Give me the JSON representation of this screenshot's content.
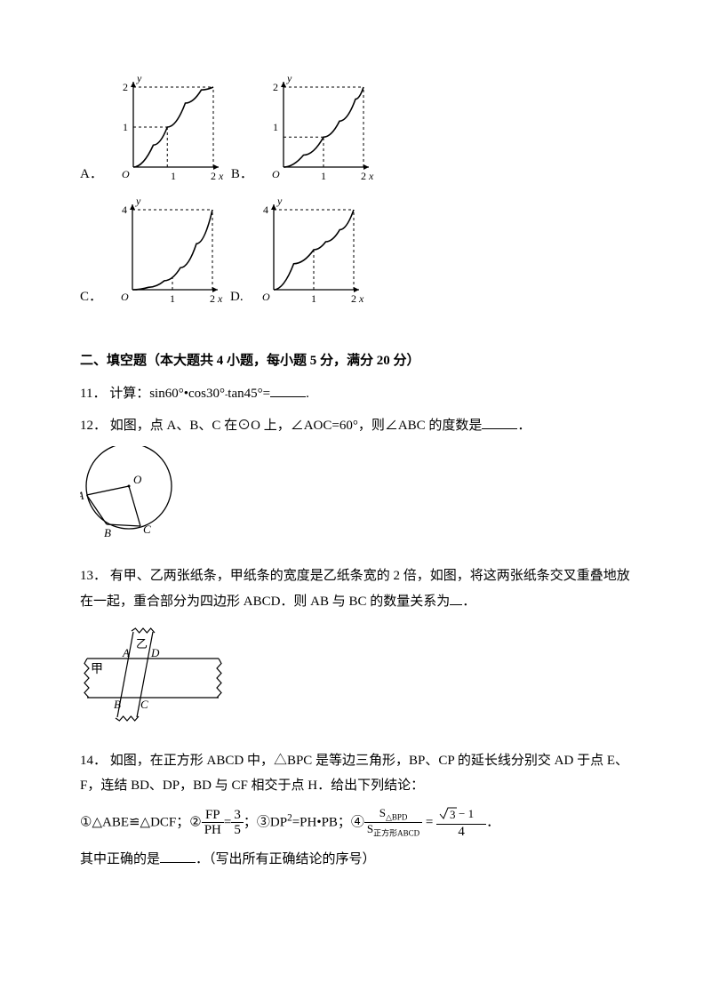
{
  "q10": {
    "opts": {
      "A": "A．",
      "B": "B．",
      "C": "C．",
      "D": "D."
    },
    "charts": {
      "A": {
        "type": "curve",
        "ymax": 2,
        "xmax": 2,
        "yticks": [
          1,
          2
        ],
        "xticks": [
          1,
          2
        ],
        "ylabel": "y",
        "xlabel": "x",
        "origin": "O",
        "pts": [
          [
            0,
            0
          ],
          [
            0.5,
            0.55
          ],
          [
            0.85,
            1.0
          ],
          [
            1.3,
            1.6
          ],
          [
            1.7,
            1.93
          ],
          [
            2,
            2
          ]
        ],
        "dashes": [
          [
            [
              0,
              2
            ],
            [
              2,
              2
            ]
          ],
          [
            [
              2,
              0
            ],
            [
              2,
              2
            ]
          ],
          [
            [
              0,
              1
            ],
            [
              0.85,
              1
            ]
          ],
          [
            [
              0.85,
              0
            ],
            [
              0.85,
              1
            ]
          ]
        ],
        "color": "#000"
      },
      "B": {
        "type": "curve",
        "ymax": 2,
        "xmax": 2,
        "yticks": [
          1,
          2
        ],
        "xticks": [
          1,
          2
        ],
        "ylabel": "y",
        "xlabel": "x",
        "origin": "O",
        "pts": [
          [
            0,
            0
          ],
          [
            0.5,
            0.3
          ],
          [
            1.0,
            0.75
          ],
          [
            1.4,
            1.15
          ],
          [
            1.8,
            1.7
          ],
          [
            2,
            2
          ]
        ],
        "dashes": [
          [
            [
              0,
              2
            ],
            [
              2,
              2
            ]
          ],
          [
            [
              2,
              0
            ],
            [
              2,
              2
            ]
          ],
          [
            [
              0,
              0.75
            ],
            [
              1,
              0.75
            ]
          ],
          [
            [
              1,
              0
            ],
            [
              1,
              0.75
            ]
          ]
        ],
        "color": "#000"
      },
      "C": {
        "type": "curve",
        "ymax": 4,
        "xmax": 2,
        "yticks": [
          4
        ],
        "xticks": [
          1,
          2
        ],
        "ylabel": "y",
        "xlabel": "x",
        "origin": "O",
        "pts": [
          [
            0,
            0
          ],
          [
            0.4,
            0.12
          ],
          [
            0.8,
            0.45
          ],
          [
            1.2,
            1.1
          ],
          [
            1.6,
            2.3
          ],
          [
            2,
            4
          ]
        ],
        "dashes": [
          [
            [
              0,
              4
            ],
            [
              2,
              4
            ]
          ],
          [
            [
              2,
              0
            ],
            [
              2,
              4
            ]
          ],
          [
            [
              1,
              0
            ],
            [
              1,
              0.65
            ]
          ]
        ],
        "color": "#000"
      },
      "D": {
        "type": "curve",
        "ymax": 4,
        "xmax": 2,
        "yticks": [
          4
        ],
        "xticks": [
          1,
          2
        ],
        "ylabel": "y",
        "xlabel": "x",
        "origin": "O",
        "pts": [
          [
            0,
            0
          ],
          [
            0.5,
            1.3
          ],
          [
            1.0,
            2.0
          ],
          [
            1.3,
            2.4
          ],
          [
            1.65,
            3.0
          ],
          [
            2,
            4
          ]
        ],
        "dashes": [
          [
            [
              0,
              4
            ],
            [
              2,
              4
            ]
          ],
          [
            [
              2,
              0
            ],
            [
              2,
              4
            ]
          ],
          [
            [
              1,
              0
            ],
            [
              1,
              2.0
            ]
          ]
        ],
        "color": "#000"
      }
    }
  },
  "section2": {
    "title": "二、填空题（本大题共 4 小题，每小题 5 分，满分 20 分）"
  },
  "q11": {
    "num": "11．",
    "text": "计算：sin60°•cos30°",
    "minus": "-",
    "text2": "tan45°=",
    "blank": "."
  },
  "q12": {
    "num": "12．",
    "text": "如图，点 A、B、C 在⊙O 上，∠AOC=60°，则∠ABC 的度数是",
    "blank": "．",
    "fig": {
      "type": "circle",
      "Olabel": "O",
      "Alabel": "A",
      "Blabel": "B",
      "Clabel": "C",
      "italicLabels": true,
      "color": "#000",
      "O": [
        55,
        45
      ],
      "r": 48,
      "A": [
        7.5,
        55
      ],
      "B": [
        30,
        88
      ],
      "C": [
        68,
        90
      ]
    }
  },
  "q13": {
    "num": "13．",
    "text": "有甲、乙两张纸条，甲纸条的宽度是乙纸条宽的 2 倍，如图，将这两张纸条交叉重叠地放在一起，重合部分为四边形 ABCD．则 AB 与 BC 的数量关系为",
    "blank": "．",
    "fig": {
      "type": "strips",
      "labels": {
        "A": "A",
        "B": "B",
        "C": "C",
        "D": "D",
        "jia": "甲",
        "yi": "乙"
      },
      "color": "#000"
    }
  },
  "q14": {
    "num": "14．",
    "text": "如图，在正方形 ABCD 中，△BPC 是等边三角形，BP、CP 的延长线分别交 AD 于点 E、F，连结 BD、DP，BD 与 CF 相交于点 H．给出下列结论：",
    "st1": "①△ABE≌△DCF；②",
    "fp": "FP",
    "ph": "PH",
    "r1n": "3",
    "r1d": "5",
    "eq1": "=",
    "st2": "；③DP",
    "sq": "2",
    "eq2": "=PH•PB；④",
    "sbpd": "S",
    "sub1": "△BPD",
    "sabcd": "S",
    "sub2": "正方形ABCD",
    "eq3": "=",
    "r2n": "√3 − 1",
    "r2d": "4",
    "period": "．",
    "last": "其中正确的是",
    "blank2": "．（写出所有正确结论的序号）"
  }
}
